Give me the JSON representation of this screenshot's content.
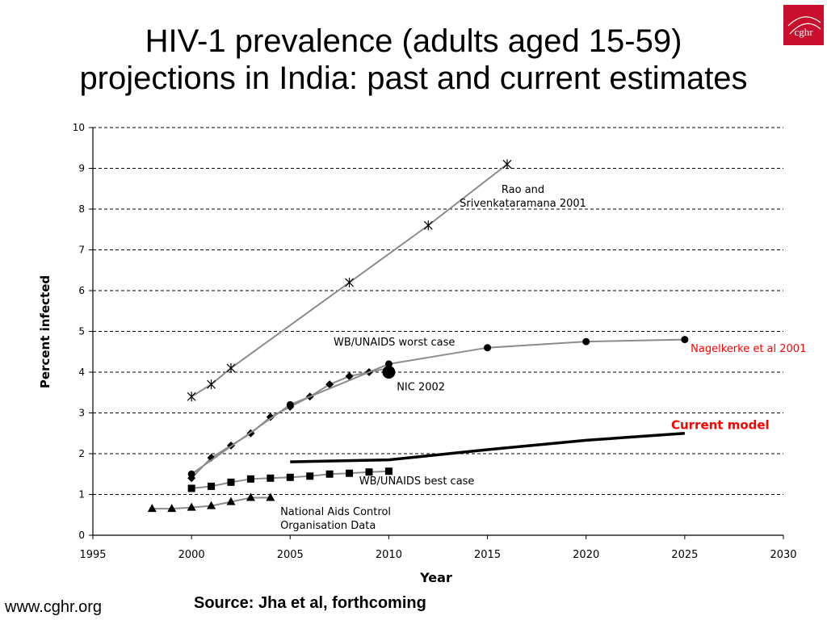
{
  "slide": {
    "title_line1": "HIV-1 prevalence (adults aged 15-59)",
    "title_line2": "projections in India: past and current estimates",
    "logo_text": "cghr",
    "footer_url": "www.cghr.org",
    "source": "Source: Jha et al, forthcoming"
  },
  "chart_data": {
    "type": "line",
    "title": "",
    "xlabel": "Year",
    "ylabel": "Percent infected",
    "xlim": [
      1995,
      2030
    ],
    "ylim": [
      0,
      10
    ],
    "xticks": [
      1995,
      2000,
      2005,
      2010,
      2015,
      2020,
      2025,
      2030
    ],
    "yticks": [
      0,
      1,
      2,
      3,
      4,
      5,
      6,
      7,
      8,
      9,
      10
    ],
    "grid": "horizontal dashed",
    "series": [
      {
        "key": "rao",
        "marker": "star",
        "line_color": "#8c8c8c",
        "points": [
          [
            2000,
            3.4
          ],
          [
            2001,
            3.7
          ],
          [
            2002,
            4.1
          ],
          [
            2008,
            6.2
          ],
          [
            2012,
            7.6
          ],
          [
            2016,
            9.1
          ]
        ]
      },
      {
        "key": "wb_worst",
        "marker": "diamond",
        "line_color": "#8c8c8c",
        "points": [
          [
            2000,
            1.4
          ],
          [
            2001,
            1.9
          ],
          [
            2002,
            2.2
          ],
          [
            2003,
            2.5
          ],
          [
            2004,
            2.9
          ],
          [
            2005,
            3.15
          ],
          [
            2006,
            3.4
          ],
          [
            2007,
            3.7
          ],
          [
            2008,
            3.9
          ],
          [
            2009,
            4.0
          ],
          [
            2010,
            4.1
          ]
        ]
      },
      {
        "key": "nagelkerke",
        "marker": "circle",
        "line_color": "#8c8c8c",
        "points": [
          [
            2000,
            1.5
          ],
          [
            2005,
            3.2
          ],
          [
            2010,
            4.2
          ],
          [
            2015,
            4.6
          ],
          [
            2020,
            4.75
          ],
          [
            2025,
            4.8
          ]
        ]
      },
      {
        "key": "nic2002",
        "marker": "circle-large",
        "line_color": "none",
        "points": [
          [
            2010,
            4.0
          ]
        ]
      },
      {
        "key": "current",
        "marker": "none",
        "line_color": "#000000",
        "line_width": 3.5,
        "points": [
          [
            2005,
            1.8
          ],
          [
            2010,
            1.85
          ],
          [
            2015,
            2.1
          ],
          [
            2020,
            2.33
          ],
          [
            2025,
            2.5
          ]
        ]
      },
      {
        "key": "wb_best",
        "marker": "square",
        "line_color": "#8c8c8c",
        "points": [
          [
            2000,
            1.15
          ],
          [
            2001,
            1.2
          ],
          [
            2002,
            1.3
          ],
          [
            2003,
            1.38
          ],
          [
            2004,
            1.4
          ],
          [
            2005,
            1.42
          ],
          [
            2006,
            1.45
          ],
          [
            2007,
            1.5
          ],
          [
            2008,
            1.52
          ],
          [
            2009,
            1.55
          ],
          [
            2010,
            1.57
          ]
        ]
      },
      {
        "key": "naco",
        "marker": "triangle",
        "line_color": "#8c8c8c",
        "points": [
          [
            1998,
            0.65
          ],
          [
            1999,
            0.65
          ],
          [
            2000,
            0.68
          ],
          [
            2001,
            0.72
          ],
          [
            2002,
            0.82
          ],
          [
            2003,
            0.92
          ],
          [
            2004,
            0.92
          ]
        ]
      }
    ],
    "annotations": [
      {
        "key": "rao",
        "lines": [
          "Rao and",
          "Srivenkataramana 2001"
        ],
        "x": 2016.8,
        "y": 8.4,
        "color": "#000000",
        "bold": false
      },
      {
        "key": "wb_worst",
        "lines": [
          "WB/UNAIDS worst case"
        ],
        "x": 2007.2,
        "y": 4.65,
        "color": "#000000",
        "bold": false
      },
      {
        "key": "nagelkerke",
        "lines": [
          "Nagelkerke et al 2001"
        ],
        "x": 2025.3,
        "y": 4.5,
        "color": "#ff0000",
        "bold": false
      },
      {
        "key": "nic2002",
        "lines": [
          "NIC 2002"
        ],
        "x": 2010.4,
        "y": 3.55,
        "color": "#000000",
        "bold": false
      },
      {
        "key": "current",
        "lines": [
          "Current model"
        ],
        "x": 2026.8,
        "y": 2.6,
        "color": "#ff0000",
        "bold": true
      },
      {
        "key": "wb_best",
        "lines": [
          "WB/UNAIDS best case"
        ],
        "x": 2008.5,
        "y": 1.25,
        "color": "#000000",
        "bold": false
      },
      {
        "key": "naco",
        "lines": [
          "National Aids Control",
          "Organisation Data"
        ],
        "x": 2004.5,
        "y": 0.5,
        "color": "#000000",
        "bold": false
      }
    ]
  }
}
